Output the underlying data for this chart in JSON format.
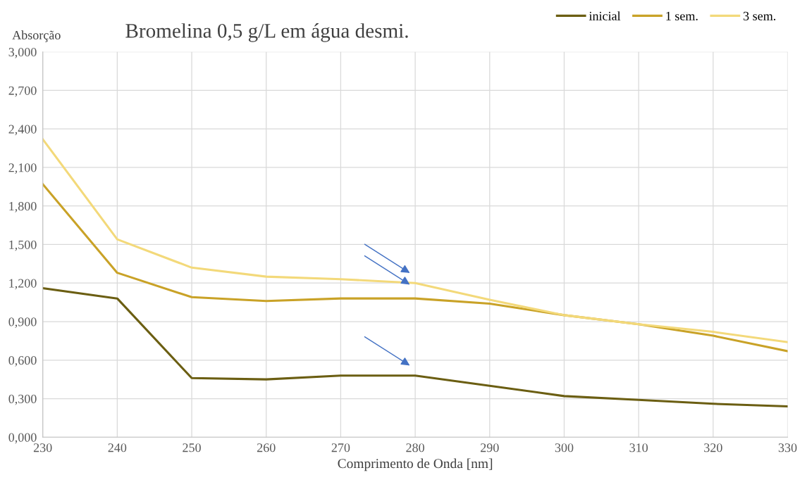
{
  "chart_data": {
    "type": "line",
    "title": "Bromelina 0,5 g/L em água desmi.",
    "xlabel": "Comprimento de Onda [nm]",
    "ylabel": "Absorção",
    "x": [
      230,
      240,
      250,
      260,
      270,
      280,
      290,
      300,
      310,
      320,
      330
    ],
    "series": [
      {
        "name": "inicial",
        "color": "#6b5e12",
        "values": [
          1.16,
          1.08,
          0.46,
          0.45,
          0.48,
          0.48,
          0.4,
          0.32,
          0.29,
          0.26,
          0.24
        ]
      },
      {
        "name": "1 sem.",
        "color": "#c9a227",
        "values": [
          1.97,
          1.28,
          1.09,
          1.06,
          1.08,
          1.08,
          1.04,
          0.95,
          0.88,
          0.79,
          0.67
        ]
      },
      {
        "name": "3 sem.",
        "color": "#f3d97a",
        "values": [
          2.32,
          1.54,
          1.32,
          1.25,
          1.23,
          1.2,
          1.07,
          0.95,
          0.88,
          0.82,
          0.74
        ]
      }
    ],
    "xlim": [
      230,
      330
    ],
    "xticks": [
      230,
      240,
      250,
      260,
      270,
      280,
      290,
      300,
      310,
      320,
      330
    ],
    "ylim": [
      0,
      3
    ],
    "yticks": [
      {
        "value": 0,
        "label": "0,000"
      },
      {
        "value": 0.3,
        "label": "0,300"
      },
      {
        "value": 0.6,
        "label": "0,600"
      },
      {
        "value": 0.9,
        "label": "0,900"
      },
      {
        "value": 1.2,
        "label": "1,200"
      },
      {
        "value": 1.5,
        "label": "1,500"
      },
      {
        "value": 1.8,
        "label": "1,800"
      },
      {
        "value": 2.1,
        "label": "2,100"
      },
      {
        "value": 2.4,
        "label": "2,400"
      },
      {
        "value": 2.7,
        "label": "2,700"
      },
      {
        "value": 3.0,
        "label": "3,000"
      }
    ],
    "grid": true,
    "legend": "top right",
    "marker": "none",
    "line_style": "solid"
  }
}
